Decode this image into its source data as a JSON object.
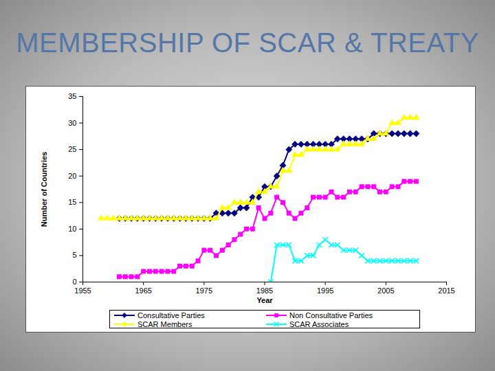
{
  "chart_data": {
    "type": "line",
    "title": "MEMBERSHIP OF SCAR & TREATY",
    "xlabel": "Year",
    "ylabel": "Number of Countries",
    "x": [
      1958,
      1959,
      1960,
      1961,
      1962,
      1963,
      1964,
      1965,
      1966,
      1967,
      1968,
      1969,
      1970,
      1971,
      1972,
      1973,
      1974,
      1975,
      1976,
      1977,
      1978,
      1979,
      1980,
      1981,
      1982,
      1983,
      1984,
      1985,
      1986,
      1987,
      1988,
      1989,
      1990,
      1991,
      1992,
      1993,
      1994,
      1995,
      1996,
      1997,
      1998,
      1999,
      2000,
      2001,
      2002,
      2003,
      2004,
      2005,
      2006,
      2007,
      2008,
      2009,
      2010
    ],
    "series": [
      {
        "name": "Consultative Parties",
        "color": "#000080",
        "marker": "diamond",
        "values": [
          null,
          null,
          null,
          12,
          12,
          12,
          12,
          12,
          12,
          12,
          12,
          12,
          12,
          12,
          12,
          12,
          12,
          12,
          12,
          13,
          13,
          13,
          13,
          14,
          14,
          16,
          16,
          18,
          18,
          20,
          22,
          25,
          26,
          26,
          26,
          26,
          26,
          26,
          26,
          27,
          27,
          27,
          27,
          27,
          27,
          28,
          28,
          28,
          28,
          28,
          28,
          28,
          28
        ]
      },
      {
        "name": "Non Consultative Parties",
        "color": "#ff00ff",
        "marker": "square",
        "values": [
          null,
          null,
          null,
          1,
          1,
          1,
          1,
          2,
          2,
          2,
          2,
          2,
          2,
          3,
          3,
          3,
          4,
          6,
          6,
          5,
          6,
          7,
          8,
          9,
          10,
          10,
          14,
          12,
          13,
          16,
          15,
          13,
          12,
          13,
          14,
          16,
          16,
          16,
          17,
          16,
          16,
          17,
          17,
          18,
          18,
          18,
          17,
          17,
          18,
          18,
          19,
          19,
          19
        ]
      },
      {
        "name": "SCAR Members",
        "color": "#ffff00",
        "marker": "triangle",
        "values": [
          12,
          12,
          12,
          12,
          12,
          12,
          12,
          12,
          12,
          12,
          12,
          12,
          12,
          12,
          12,
          12,
          12,
          12,
          12,
          12,
          14,
          14,
          15,
          15,
          15,
          15,
          17,
          17,
          18,
          18,
          21,
          21,
          24,
          24,
          25,
          25,
          25,
          25,
          25,
          25,
          26,
          26,
          26,
          26,
          27,
          27,
          28,
          28,
          30,
          30,
          31,
          31,
          31
        ]
      },
      {
        "name": "SCAR Associates",
        "color": "#00ffff",
        "marker": "times",
        "values": [
          null,
          null,
          null,
          null,
          null,
          null,
          null,
          null,
          null,
          null,
          null,
          null,
          null,
          null,
          null,
          null,
          null,
          null,
          null,
          null,
          null,
          null,
          null,
          null,
          null,
          null,
          null,
          null,
          0,
          7,
          7,
          7,
          4,
          4,
          5,
          5,
          7,
          8,
          7,
          7,
          6,
          6,
          6,
          5,
          4,
          4,
          4,
          4,
          4,
          4,
          4,
          4,
          4
        ]
      }
    ],
    "xlim": [
      1955,
      2015
    ],
    "xticks": [
      1955,
      1965,
      1975,
      1985,
      1995,
      2005,
      2015
    ],
    "ylim": [
      0,
      35
    ],
    "yticks": [
      0,
      5,
      10,
      15,
      20,
      25,
      30,
      35
    ],
    "grid": false,
    "legend": "bottom"
  }
}
